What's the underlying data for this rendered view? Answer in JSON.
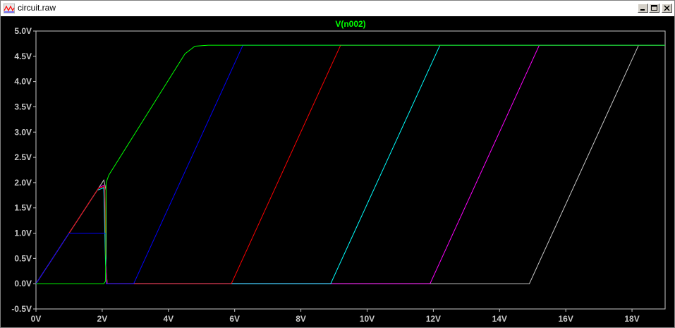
{
  "window": {
    "title": "circuit.raw",
    "icon": "waveform-viewer-icon",
    "controls": [
      "minimize-icon",
      "maximize-icon",
      "close-icon"
    ]
  },
  "colors": {
    "background": "#000000",
    "frame": "#c8c8c8",
    "title_trace": "#00ff00"
  },
  "chart_data": {
    "type": "line",
    "title": "V(n002)",
    "xlabel": "",
    "ylabel": "",
    "xlim": [
      0,
      19
    ],
    "ylim": [
      -0.5,
      5.0
    ],
    "x_ticks": [
      0,
      2,
      4,
      6,
      8,
      10,
      12,
      14,
      16,
      18
    ],
    "x_tick_labels": [
      "0V",
      "2V",
      "4V",
      "6V",
      "8V",
      "10V",
      "12V",
      "14V",
      "16V",
      "18V"
    ],
    "y_ticks": [
      5.0,
      4.5,
      4.0,
      3.5,
      3.0,
      2.5,
      2.0,
      1.5,
      1.0,
      0.5,
      0.0,
      -0.5
    ],
    "y_tick_labels": [
      "5.0V",
      "4.5V",
      "4.0V",
      "3.5V",
      "3.0V",
      "2.5V",
      "2.0V",
      "1.5V",
      "1.0V",
      "0.5V",
      "0.0V",
      "-0.5V"
    ],
    "grid": false,
    "series": [
      {
        "color": "#c8c8c8",
        "points": [
          [
            0,
            0
          ],
          [
            2.05,
            2.05
          ],
          [
            2.12,
            1.85
          ],
          [
            2.12,
            0.0
          ],
          [
            14.9,
            0.0
          ],
          [
            18.2,
            4.72
          ],
          [
            19,
            4.72
          ]
        ]
      },
      {
        "color": "#ff00ff",
        "points": [
          [
            0,
            0
          ],
          [
            1.9,
            1.9
          ],
          [
            2.05,
            1.95
          ],
          [
            2.1,
            0.6
          ],
          [
            2.15,
            0.0
          ],
          [
            11.9,
            0.0
          ],
          [
            15.2,
            4.72
          ],
          [
            19,
            4.72
          ]
        ]
      },
      {
        "color": "#00ffff",
        "points": [
          [
            0,
            0
          ],
          [
            1.85,
            1.85
          ],
          [
            2.05,
            1.9
          ],
          [
            2.1,
            0.4
          ],
          [
            2.15,
            0.0
          ],
          [
            8.9,
            0.0
          ],
          [
            12.2,
            4.72
          ],
          [
            19,
            4.72
          ]
        ]
      },
      {
        "color": "#ff0000",
        "points": [
          [
            0,
            0
          ],
          [
            1.9,
            1.9
          ],
          [
            2.08,
            1.92
          ],
          [
            2.1,
            0.6
          ],
          [
            2.15,
            0.0
          ],
          [
            5.9,
            0.0
          ],
          [
            9.2,
            4.72
          ],
          [
            19,
            4.72
          ]
        ]
      },
      {
        "color": "#0000ff",
        "points": [
          [
            0,
            0
          ],
          [
            1.0,
            1.0
          ],
          [
            2.1,
            1.0
          ],
          [
            2.12,
            0.0
          ],
          [
            2.95,
            0.0
          ],
          [
            6.25,
            4.72
          ],
          [
            19,
            4.72
          ]
        ]
      },
      {
        "color": "#00ff00",
        "points": [
          [
            0,
            0
          ],
          [
            2.05,
            0.0
          ],
          [
            2.1,
            0.05
          ],
          [
            2.12,
            2.0
          ],
          [
            2.2,
            2.15
          ],
          [
            4.5,
            4.55
          ],
          [
            4.8,
            4.7
          ],
          [
            5.2,
            4.72
          ],
          [
            6.3,
            4.72
          ],
          [
            19,
            4.72
          ]
        ]
      }
    ]
  }
}
